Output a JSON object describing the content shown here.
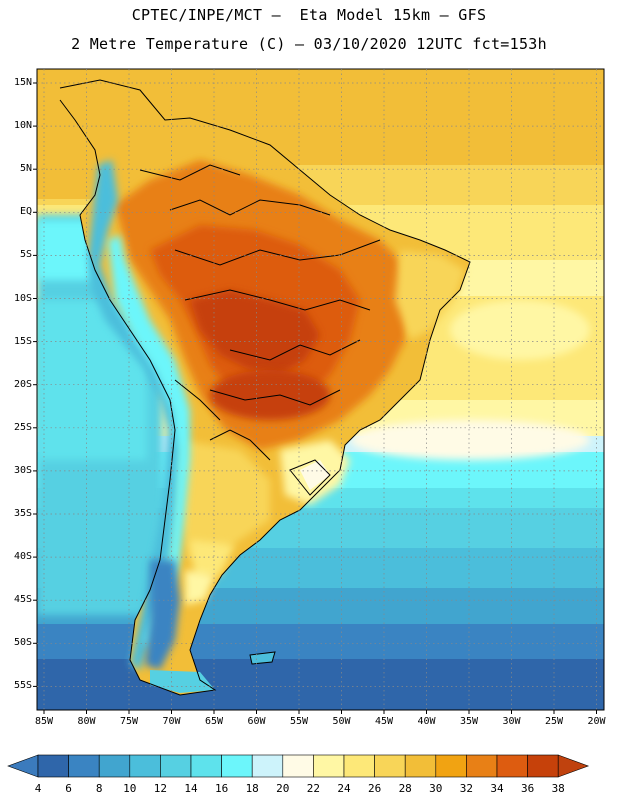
{
  "title": {
    "line1": "CPTEC/INPE/MCT –  Eta Model 15km – GFS",
    "line2": "2 Metre Temperature (C) – 03/10/2020 12UTC fct=153h"
  },
  "map": {
    "lat_ticks": [
      "15N",
      "10N",
      "5N",
      "EQ",
      "5S",
      "10S",
      "15S",
      "20S",
      "25S",
      "30S",
      "35S",
      "40S",
      "45S",
      "50S",
      "55S"
    ],
    "lon_ticks": [
      "85W",
      "80W",
      "75W",
      "70W",
      "65W",
      "60W",
      "55W",
      "50W",
      "45W",
      "40W",
      "35W",
      "30W",
      "25W",
      "20W"
    ]
  },
  "colorbar": {
    "labels": [
      "4",
      "6",
      "8",
      "10",
      "12",
      "14",
      "16",
      "18",
      "20",
      "22",
      "24",
      "26",
      "28",
      "30",
      "32",
      "34",
      "36",
      "38"
    ],
    "under_color": "#3b7bbd",
    "over_color": "#c0420e",
    "colors": [
      "#2f66aa",
      "#3a84c2",
      "#41a5cf",
      "#4bbedb",
      "#56d0e2",
      "#5ee2ec",
      "#6cf6fb",
      "#cdf3fb",
      "#fffbe6",
      "#fff7a4",
      "#fde878",
      "#f8d558",
      "#f2be38",
      "#f1a312",
      "#e88016",
      "#dd5c10",
      "#c6410a"
    ]
  }
}
